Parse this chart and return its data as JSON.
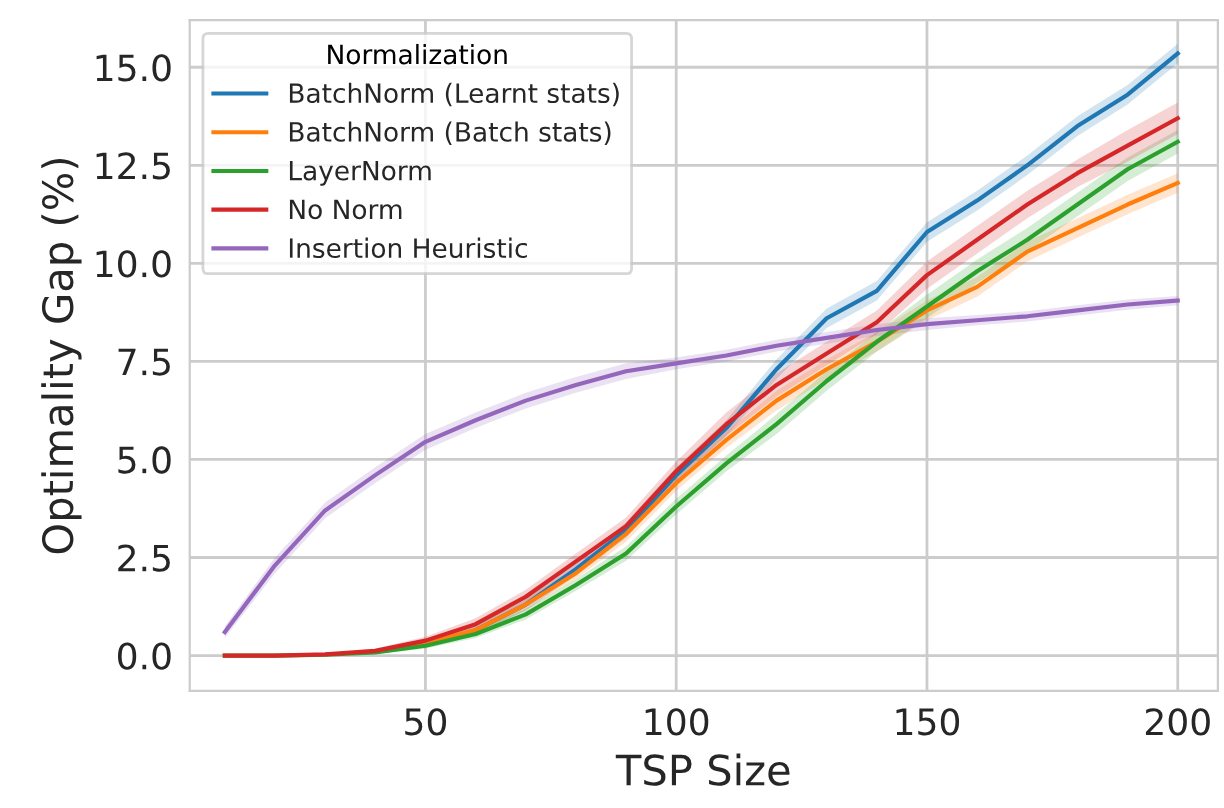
{
  "chart_data": {
    "type": "line",
    "xlabel": "TSP Size",
    "ylabel": "Optimality Gap (%)",
    "legend_title": "Normalization",
    "legend": "top left",
    "grid": true,
    "x": [
      10,
      20,
      30,
      40,
      50,
      60,
      70,
      80,
      90,
      100,
      110,
      120,
      130,
      140,
      150,
      160,
      170,
      180,
      190,
      200
    ],
    "xlim": [
      3,
      208
    ],
    "ylim": [
      -0.9,
      16.2
    ],
    "xticks": [
      50,
      100,
      150,
      200
    ],
    "yticks": [
      {
        "value": 0,
        "label": "0.0"
      },
      2.5,
      {
        "value": 5,
        "label": "5.0"
      },
      7.5,
      {
        "value": 10,
        "label": "10.0"
      },
      12.5,
      {
        "value": 15,
        "label": "15.0"
      }
    ],
    "series": [
      {
        "name": "BatchNorm (Learnt stats)",
        "color": "#1f77b4",
        "values": [
          null,
          null,
          null,
          null,
          null,
          0.65,
          1.3,
          2.2,
          3.2,
          4.6,
          5.8,
          7.3,
          8.6,
          9.3,
          10.8,
          11.6,
          12.5,
          13.5,
          14.3,
          15.35
        ],
        "lower": [
          0,
          0,
          0,
          0.05,
          0.22,
          0.55,
          1.15,
          2.05,
          3.0,
          4.4,
          5.6,
          7.05,
          8.35,
          9.05,
          10.55,
          11.35,
          12.25,
          13.25,
          14.05,
          15.1
        ],
        "upper": [
          0,
          0,
          0.06,
          0.15,
          0.38,
          0.75,
          1.45,
          2.35,
          3.4,
          4.8,
          6.0,
          7.55,
          8.85,
          9.55,
          11.05,
          11.85,
          12.75,
          13.75,
          14.55,
          15.6
        ]
      },
      {
        "name": "BatchNorm (Batch stats)",
        "color": "#ff7f0e",
        "values": [
          null,
          null,
          null,
          0.1,
          0.32,
          0.65,
          1.3,
          2.1,
          3.1,
          4.4,
          5.5,
          6.5,
          7.3,
          8.0,
          8.8,
          9.4,
          10.3,
          10.9,
          11.5,
          12.05
        ],
        "lower": [
          0,
          0,
          0,
          0.05,
          0.24,
          0.55,
          1.15,
          1.95,
          2.9,
          4.2,
          5.3,
          6.25,
          7.05,
          7.75,
          8.55,
          9.15,
          10.05,
          10.65,
          11.25,
          11.8
        ],
        "upper": [
          0,
          0,
          0.06,
          0.15,
          0.4,
          0.75,
          1.45,
          2.25,
          3.3,
          4.6,
          5.7,
          6.75,
          7.55,
          8.25,
          9.05,
          9.65,
          10.55,
          11.15,
          11.75,
          12.3
        ]
      },
      {
        "name": "LayerNorm",
        "color": "#2ca02c",
        "values": [
          0,
          0,
          0.02,
          0.08,
          0.25,
          0.55,
          1.05,
          1.8,
          2.6,
          3.8,
          4.9,
          5.9,
          7.0,
          8.0,
          8.9,
          9.8,
          10.6,
          11.5,
          12.4,
          13.1
        ],
        "lower": [
          0,
          0,
          0,
          0.04,
          0.18,
          0.45,
          0.92,
          1.65,
          2.42,
          3.6,
          4.7,
          5.65,
          6.75,
          7.75,
          8.6,
          9.5,
          10.3,
          11.2,
          12.1,
          12.8
        ],
        "upper": [
          0,
          0,
          0.05,
          0.12,
          0.32,
          0.65,
          1.18,
          1.95,
          2.78,
          4.0,
          5.1,
          6.15,
          7.25,
          8.25,
          9.2,
          10.1,
          10.9,
          11.8,
          12.7,
          13.4
        ]
      },
      {
        "name": "No Norm",
        "color": "#d62728",
        "values": [
          0,
          0,
          0.03,
          0.12,
          0.38,
          0.8,
          1.5,
          2.4,
          3.3,
          4.7,
          5.9,
          6.9,
          7.7,
          8.5,
          9.7,
          10.6,
          11.5,
          12.3,
          13.0,
          13.7
        ],
        "lower": [
          0,
          0,
          0,
          0.06,
          0.28,
          0.65,
          1.32,
          2.2,
          3.08,
          4.45,
          5.6,
          6.6,
          7.4,
          8.2,
          9.35,
          10.25,
          11.15,
          11.95,
          12.6,
          13.3
        ],
        "upper": [
          0,
          0,
          0.06,
          0.18,
          0.48,
          0.95,
          1.68,
          2.6,
          3.52,
          4.95,
          6.2,
          7.2,
          8.0,
          8.8,
          10.05,
          10.95,
          11.85,
          12.65,
          13.4,
          14.1
        ]
      },
      {
        "name": "Insertion Heuristic",
        "color": "#9467bd",
        "values": [
          0.6,
          2.3,
          3.7,
          4.6,
          5.45,
          6.0,
          6.5,
          6.9,
          7.25,
          7.45,
          7.65,
          7.9,
          8.1,
          8.3,
          8.45,
          8.55,
          8.65,
          8.8,
          8.95,
          9.05
        ],
        "lower": [
          0.45,
          2.1,
          3.5,
          4.4,
          5.25,
          5.8,
          6.3,
          6.7,
          7.05,
          7.3,
          7.5,
          7.75,
          7.95,
          8.15,
          8.3,
          8.42,
          8.52,
          8.67,
          8.82,
          8.93
        ],
        "upper": [
          0.75,
          2.5,
          3.9,
          4.8,
          5.65,
          6.2,
          6.7,
          7.1,
          7.45,
          7.6,
          7.8,
          8.05,
          8.25,
          8.45,
          8.6,
          8.68,
          8.78,
          8.93,
          9.08,
          9.17
        ]
      }
    ]
  }
}
